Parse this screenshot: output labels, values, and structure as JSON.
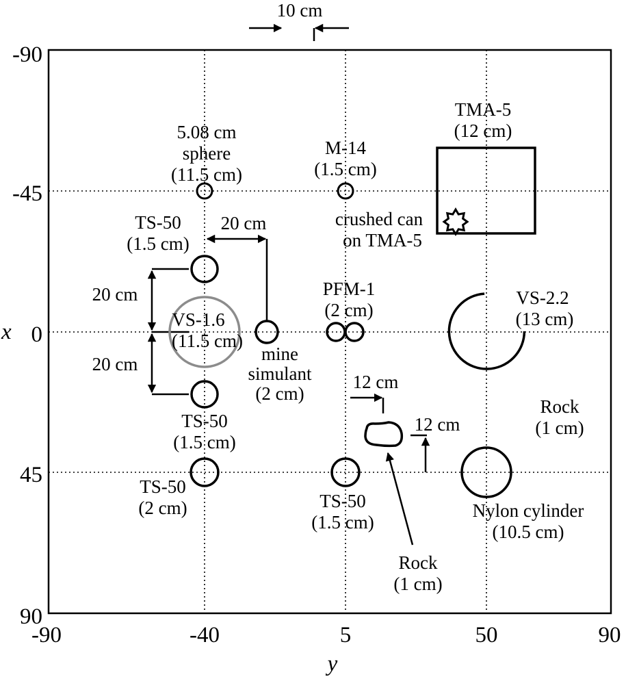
{
  "axes": {
    "y_label": "y",
    "x_label": "x",
    "x_range": [
      -90,
      90
    ],
    "y_range": [
      -90,
      90
    ],
    "y_ticks": [
      "-90",
      "-40",
      "5",
      "50",
      "90"
    ],
    "x_ticks": [
      "-90",
      "-45",
      "0",
      "45",
      "90"
    ]
  },
  "objects": {
    "sphere": [
      "5.08 cm",
      "sphere",
      "(11.5 cm)"
    ],
    "m14": [
      "M-14",
      "(1.5 cm)"
    ],
    "tma5": [
      "TMA-5",
      "(12 cm)"
    ],
    "crushed_can": [
      "crushed can",
      "on TMA-5"
    ],
    "ts50_top": [
      "TS-50",
      "(1.5 cm)"
    ],
    "pfm1": [
      "PFM-1",
      "(2 cm)"
    ],
    "vs22": [
      "VS-2.2",
      "(13 cm)"
    ],
    "vs16": [
      "VS-1.6",
      "(11.5 cm)"
    ],
    "mine_sim": [
      "mine",
      "simulant",
      "(2 cm)"
    ],
    "ts50_mid": [
      "TS-50",
      "(1.5 cm)"
    ],
    "rock_right": [
      "Rock",
      "(1 cm)"
    ],
    "ts50_left": [
      "TS-50",
      "(2 cm)"
    ],
    "ts50_bottom": [
      "TS-50",
      "(1.5 cm)"
    ],
    "nylon": [
      "Nylon cylinder",
      "(10.5 cm)"
    ],
    "rock_bottom": [
      "Rock",
      "(1 cm)"
    ]
  },
  "dimensions": {
    "top_gap": "10 cm",
    "ts_to_sim": "20 cm",
    "vertical_upper": "20 cm",
    "vertical_lower": "20 cm",
    "rock_horizontal": "12 cm",
    "rock_vertical": "12 cm"
  }
}
